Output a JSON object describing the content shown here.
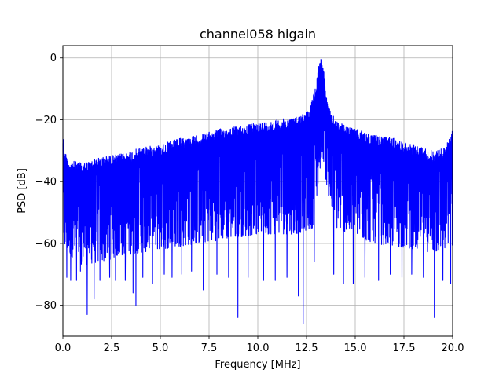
{
  "chart_data": {
    "type": "line",
    "title": "channel058 higain",
    "xlabel": "Frequency [MHz]",
    "ylabel": "PSD [dB]",
    "xlim": [
      0,
      20
    ],
    "ylim": [
      -90,
      4
    ],
    "xticks": [
      0,
      2.5,
      5,
      7.5,
      10,
      12.5,
      15,
      17.5,
      20
    ],
    "xtick_labels": [
      "0.0",
      "2.5",
      "5.0",
      "7.5",
      "10.0",
      "12.5",
      "15.0",
      "17.5",
      "20.0"
    ],
    "yticks": [
      0,
      -20,
      -40,
      -60,
      -80
    ],
    "ytick_labels": [
      "0",
      "−20",
      "−40",
      "−60",
      "−80"
    ],
    "grid": true,
    "line_color": "#0000ff",
    "series": [
      {
        "upper_envelope": {
          "x": [
            0,
            0.1,
            0.3,
            1,
            2,
            3,
            4,
            5,
            6,
            7,
            8,
            9,
            10,
            11,
            12,
            12.6,
            12.9,
            13.1,
            13.2,
            13.3,
            13.4,
            13.5,
            13.7,
            14,
            14.5,
            15,
            16,
            17,
            18,
            19,
            19.6,
            19.9,
            20
          ],
          "y": [
            -25,
            -30,
            -33,
            -34,
            -32,
            -31,
            -29,
            -28,
            -26,
            -25,
            -23,
            -22,
            -21,
            -20,
            -19,
            -17,
            -11,
            -3,
            0,
            0,
            -4,
            -12,
            -17,
            -20,
            -22,
            -23,
            -25,
            -26,
            -28,
            -30,
            -29,
            -25,
            -23
          ]
        },
        "lower_envelope": {
          "x": [
            0,
            1,
            2,
            3,
            4,
            5,
            6,
            7,
            8,
            9,
            10,
            11,
            12,
            12.8,
            13,
            13.3,
            13.6,
            14,
            15,
            16,
            17,
            18,
            19,
            20
          ],
          "y": [
            -62,
            -67,
            -66,
            -64,
            -63,
            -62,
            -61,
            -60,
            -59,
            -58,
            -57,
            -57,
            -57,
            -55,
            -47,
            -30,
            -46,
            -55,
            -58,
            -60,
            -61,
            -62,
            -63,
            -62
          ]
        },
        "dips": {
          "x": [
            0.2,
            0.4,
            0.7,
            0.9,
            1.25,
            1.6,
            1.9,
            2.4,
            2.7,
            3.2,
            3.6,
            3.75,
            4.1,
            4.6,
            5.2,
            5.6,
            6.1,
            6.6,
            7.2,
            7.9,
            8.5,
            8.98,
            9.5,
            10.3,
            10.9,
            11.5,
            12.08,
            12.33,
            12.9,
            13.9,
            14.4,
            14.9,
            15.5,
            16.2,
            16.8,
            17.4,
            17.9,
            18.5,
            19.06,
            19.5,
            19.9
          ],
          "y": [
            -71,
            -72,
            -72,
            -69,
            -83,
            -78,
            -72,
            -71,
            -72,
            -72,
            -76,
            -80,
            -71,
            -73,
            -70,
            -71,
            -70,
            -69,
            -75,
            -70,
            -71,
            -84,
            -71,
            -72,
            -72,
            -71,
            -77,
            -86,
            -66,
            -70,
            -73,
            -73,
            -71,
            -72,
            -70,
            -71,
            -70,
            -71,
            -84,
            -72,
            -73
          ]
        }
      }
    ]
  }
}
